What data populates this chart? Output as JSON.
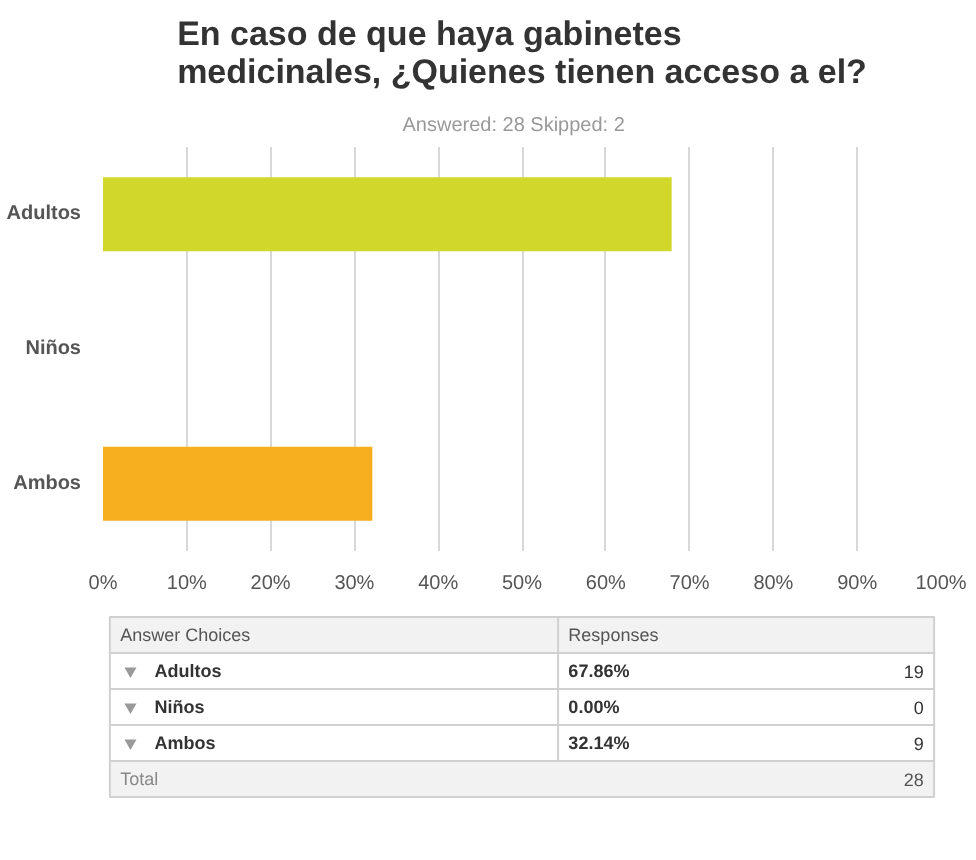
{
  "chart_data": {
    "type": "bar",
    "orientation": "horizontal",
    "title": "En caso de que haya gabinetes medicinales, ¿Quienes tienen acceso a el?",
    "subtitle": "Answered: 28    Skipped: 2",
    "categories": [
      "Adultos",
      "Niños",
      "Ambos"
    ],
    "values": [
      67.86,
      0,
      32.14
    ],
    "colors": [
      "#d2d72b",
      "#ffffff",
      "#f7ae1f"
    ],
    "xlim": [
      0,
      100
    ],
    "xticks": [
      {
        "value": 0,
        "label": "0%"
      },
      {
        "value": 10,
        "label": "10%"
      },
      {
        "value": 20,
        "label": "20%"
      },
      {
        "value": 30,
        "label": "30%"
      },
      {
        "value": 40,
        "label": "40%"
      },
      {
        "value": 50,
        "label": "50%"
      },
      {
        "value": 60,
        "label": "60%"
      },
      {
        "value": 70,
        "label": "70%"
      },
      {
        "value": 80,
        "label": "80%"
      },
      {
        "value": 90,
        "label": "90%"
      },
      {
        "value": 100,
        "label": "100%"
      }
    ],
    "grid": "x",
    "annotations": [
      "Answer Choices",
      "Responses",
      "67.86%",
      "19",
      "0.00%",
      "0",
      "32.14%",
      "9",
      "Total",
      "28"
    ]
  }
}
